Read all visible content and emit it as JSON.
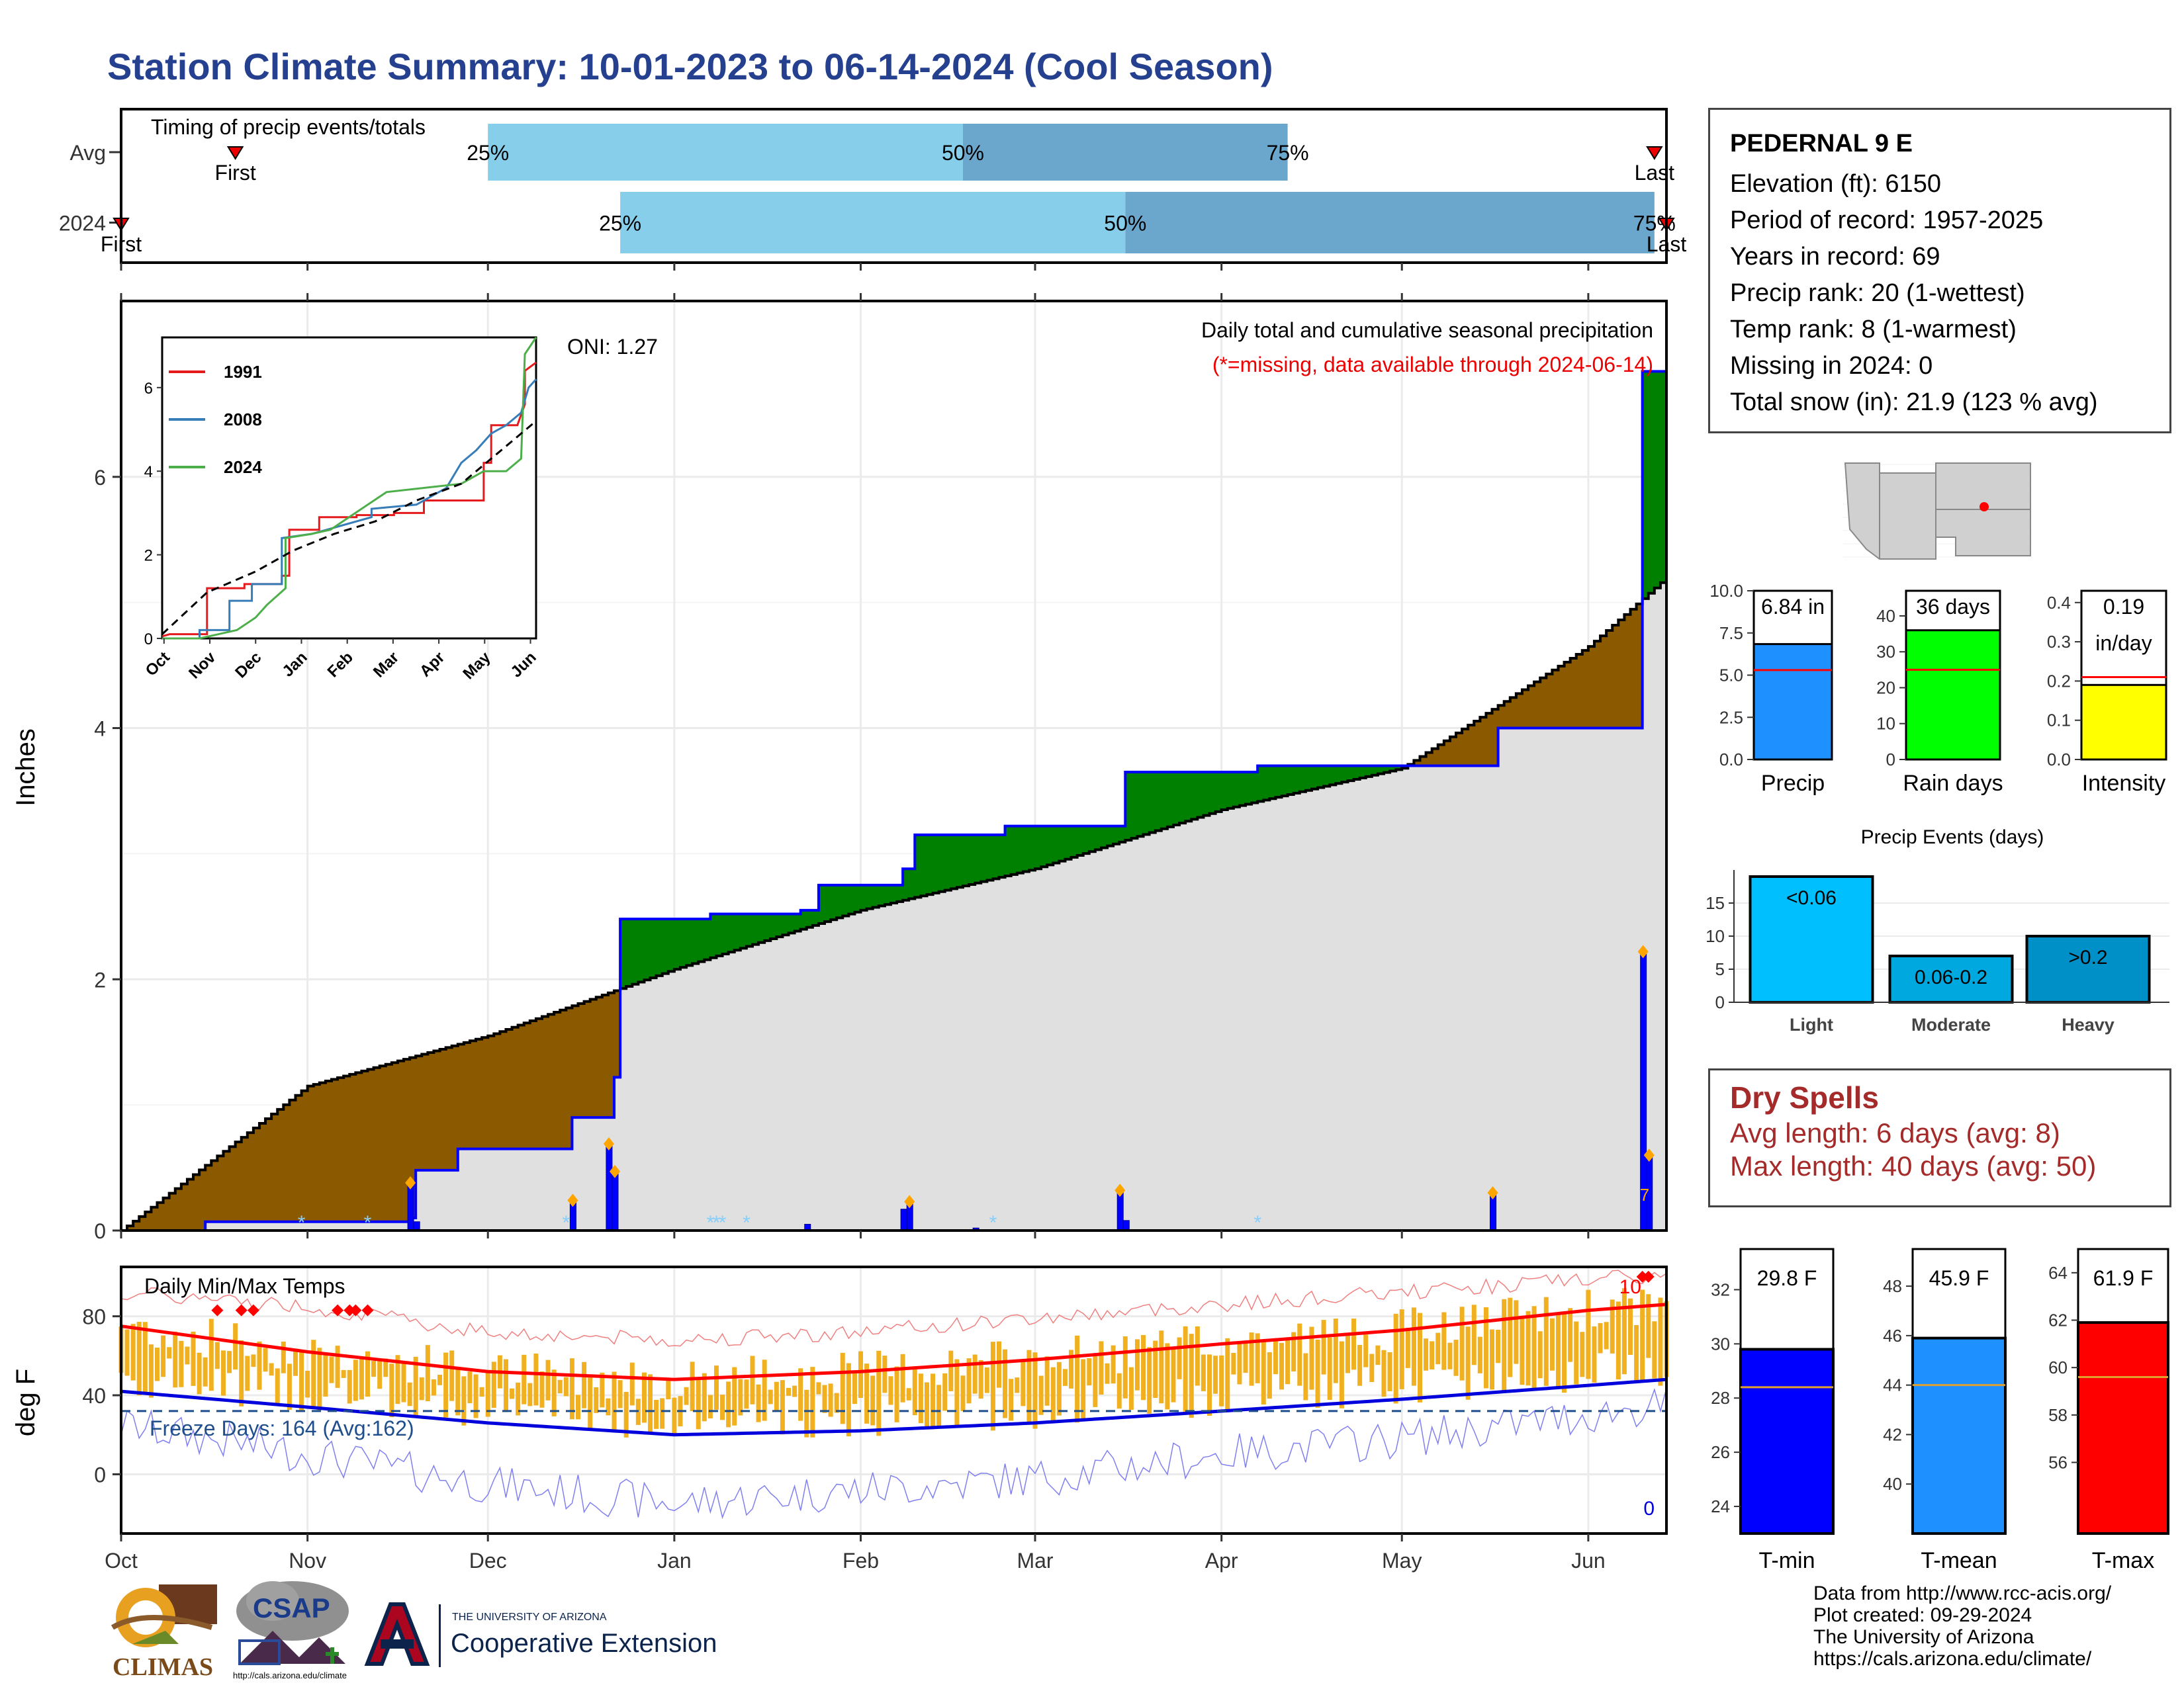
{
  "title": "Station Climate Summary: 10-01-2023 to 06-14-2024 (Cool Season)",
  "colors": {
    "title": "#24408e",
    "q1": "#87ceeb",
    "q2": "#6ba6cd",
    "brown": "#8b5a00",
    "green": "#008000",
    "gray_fill": "#e0e0e0",
    "blue_line": "#0000ff",
    "orange": "#ffa500",
    "red": "#ff0000",
    "temp_bar": "#f0b020"
  },
  "timing": {
    "title": "Timing of precip events/totals",
    "rows": [
      {
        "label": "Avg",
        "first_label": "First",
        "last_label": "Last",
        "first_date": "2023-10-20",
        "last_date": "2024-06-12",
        "p25": "2023-12-01",
        "p50": "2024-02-18",
        "p75": "2024-04-12",
        "q25_label": "25%",
        "q50_label": "50%",
        "q75_label": "75%"
      },
      {
        "label": "2024",
        "first_label": "First",
        "last_label": "Last",
        "first_date": "2023-10-01",
        "last_date": "2024-06-14",
        "p25": "2023-12-23",
        "p50": "2024-03-16",
        "p75": "2024-06-12",
        "q25_label": "25%",
        "q50_label": "50%",
        "q75_label": "75%"
      }
    ]
  },
  "precip_panel": {
    "ylabel": "Inches",
    "header": "Daily total and cumulative seasonal precipitation",
    "note": "(*=missing, data available through 2024-06-14)",
    "oni": "ONI: 1.27",
    "yticks": [
      "0",
      "2",
      "4",
      "6"
    ],
    "annotation": "7"
  },
  "inset": {
    "legend": [
      "1991",
      "2008",
      "2024"
    ],
    "xticks": [
      "Oct",
      "Nov",
      "Dec",
      "Jan",
      "Feb",
      "Mar",
      "Apr",
      "May",
      "Jun"
    ],
    "yticks": [
      "0",
      "2",
      "4",
      "6"
    ]
  },
  "temp_panel": {
    "ylabel": "deg F",
    "title": "Daily Min/Max Temps",
    "freeze": "Freeze Days: 164 (Avg:162)",
    "record_hi_count": "10",
    "record_lo_count": "0",
    "yticks": [
      "0",
      "40",
      "80"
    ]
  },
  "months": [
    "Oct",
    "Nov",
    "Dec",
    "Jan",
    "Feb",
    "Mar",
    "Apr",
    "May",
    "Jun"
  ],
  "station": {
    "name": "PEDERNAL 9 E",
    "lines": [
      "Elevation (ft): 6150",
      "Period of record: 1957-2025",
      "Years in record: 69",
      "Precip rank: 20 (1-wettest)",
      "Temp rank: 8 (1-warmest)",
      "Missing in 2024: 0",
      "Total snow (in): 21.9 (123 % avg)"
    ]
  },
  "mini_bars": [
    {
      "label": "Precip",
      "value_text": "6.84 in",
      "value": 6.84,
      "avg": 5.3,
      "ymax": 10,
      "yticks": [
        "0.0",
        "2.5",
        "5.0",
        "7.5",
        "10.0"
      ],
      "tickvals": [
        0,
        2.5,
        5,
        7.5,
        10
      ],
      "color": "#1e90ff"
    },
    {
      "label": "Rain days",
      "value_text": "36 days",
      "value": 36,
      "avg": 25,
      "ymax": 47,
      "yticks": [
        "0",
        "10",
        "20",
        "30",
        "40"
      ],
      "tickvals": [
        0,
        10,
        20,
        30,
        40
      ],
      "color": "#00ff00"
    },
    {
      "label": "Intensity",
      "value_text": "0.19",
      "value_text2": "in/day",
      "value": 0.19,
      "avg": 0.21,
      "ymax": 0.43,
      "yticks": [
        "0.0",
        "0.1",
        "0.2",
        "0.3",
        "0.4"
      ],
      "tickvals": [
        0,
        0.1,
        0.2,
        0.3,
        0.4
      ],
      "color": "#ffff00"
    }
  ],
  "events": {
    "title": "Precip Events (days)",
    "categories": [
      "Light",
      "Moderate",
      "Heavy"
    ],
    "bar_labels": [
      "<0.06",
      "0.06-0.2",
      ">0.2"
    ],
    "values": [
      19,
      7,
      10
    ],
    "colors": [
      "#00bfff",
      "#00a8e0",
      "#0090c8"
    ],
    "yticks": [
      "0",
      "5",
      "10",
      "15"
    ]
  },
  "dry_spells": {
    "title": "Dry Spells",
    "avg_line": "Avg length: 6 days (avg: 8)",
    "max_line": "Max length: 40 days (avg: 50)"
  },
  "temp_bars": [
    {
      "label": "T-min",
      "value_text": "29.8 F",
      "value": 29.8,
      "avg": 28.4,
      "ymin": 23,
      "ymax": 33.5,
      "yticks": [
        "24",
        "26",
        "28",
        "30",
        "32"
      ],
      "tickvals": [
        24,
        26,
        28,
        30,
        32
      ],
      "color": "#0000ff"
    },
    {
      "label": "T-mean",
      "value_text": "45.9 F",
      "value": 45.9,
      "avg": 44.0,
      "ymin": 38,
      "ymax": 49.5,
      "yticks": [
        "40",
        "42",
        "44",
        "46",
        "48"
      ],
      "tickvals": [
        40,
        42,
        44,
        46,
        48
      ],
      "color": "#1e90ff"
    },
    {
      "label": "T-max",
      "value_text": "61.9 F",
      "value": 61.9,
      "avg": 59.6,
      "ymin": 53,
      "ymax": 65,
      "yticks": [
        "56",
        "58",
        "60",
        "62",
        "64"
      ],
      "tickvals": [
        56,
        58,
        60,
        62,
        64
      ],
      "color": "#ff0000"
    }
  ],
  "logos": {
    "climas": "CLIMAS",
    "csap": "CSAP",
    "csap_url": "http://cals.arizona.edu/climate",
    "ua_small": "THE UNIVERSITY OF ARIZONA",
    "ua_big": "Cooperative Extension"
  },
  "credits": [
    "Data from http://www.rcc-acis.org/",
    "Plot created: 09-29-2024",
    "The University of Arizona",
    "https://cals.arizona.edu/climate/"
  ],
  "chart_data": [
    {
      "type": "area",
      "title": "Daily total and cumulative seasonal precipitation",
      "ylabel": "Inches",
      "ylim": [
        0,
        7.4
      ],
      "series": [
        {
          "name": "2024",
          "x": [
            "2023-10-01",
            "2023-10-15",
            "2023-11-01",
            "2023-11-18",
            "2023-11-19",
            "2023-11-26",
            "2023-12-15",
            "2023-12-22",
            "2023-12-23",
            "2024-01-07",
            "2024-01-20",
            "2024-01-22",
            "2024-01-25",
            "2024-02-08",
            "2024-02-10",
            "2024-02-25",
            "2024-03-16",
            "2024-04-07",
            "2024-05-16",
            "2024-05-17",
            "2024-06-08",
            "2024-06-10",
            "2024-06-14"
          ],
          "values": [
            0.0,
            0.07,
            0.07,
            0.1,
            0.48,
            0.65,
            0.9,
            1.22,
            2.48,
            2.52,
            2.52,
            2.55,
            2.75,
            2.88,
            3.15,
            3.22,
            3.65,
            3.7,
            3.7,
            4.0,
            4.0,
            6.84,
            6.84
          ]
        },
        {
          "name": "Average",
          "x": [
            "2023-10-01",
            "2023-11-01",
            "2023-12-01",
            "2024-01-01",
            "2024-02-01",
            "2024-03-01",
            "2024-04-01",
            "2024-05-01",
            "2024-06-01",
            "2024-06-14"
          ],
          "values": [
            0.0,
            1.15,
            1.55,
            2.08,
            2.55,
            2.88,
            3.35,
            3.68,
            4.65,
            5.2
          ]
        }
      ],
      "daily_bars": {
        "x": [
          "2023-11-18",
          "2023-11-19",
          "2023-12-15",
          "2023-12-21",
          "2023-12-22",
          "2024-01-23",
          "2024-02-08",
          "2024-02-09",
          "2024-02-20",
          "2024-03-15",
          "2024-03-16",
          "2024-05-16",
          "2024-06-10",
          "2024-06-11"
        ],
        "values": [
          0.38,
          0.07,
          0.24,
          0.69,
          0.47,
          0.05,
          0.17,
          0.23,
          0.02,
          0.32,
          0.08,
          0.3,
          2.22,
          0.6
        ]
      },
      "missing_dates": [
        "2023-10-31",
        "2023-11-11",
        "2023-12-14",
        "2024-01-07",
        "2024-01-08",
        "2024-01-09",
        "2024-01-13",
        "2024-02-23",
        "2024-04-07"
      ]
    },
    {
      "type": "line",
      "title": "Inset cumulative precipitation",
      "series": [
        {
          "name": "1991",
          "color": "#e41a1c"
        },
        {
          "name": "2008",
          "color": "#377eb8"
        },
        {
          "name": "2024",
          "color": "#4daf4a"
        }
      ],
      "ylim": [
        0,
        7.2
      ]
    },
    {
      "type": "line",
      "title": "Daily Min/Max Temps",
      "ylabel": "deg F",
      "ylim": [
        -30,
        105
      ],
      "x": [
        "2023-10-01",
        "2023-11-01",
        "2023-12-01",
        "2024-01-01",
        "2024-02-01",
        "2024-03-01",
        "2024-04-01",
        "2024-05-01",
        "2024-06-01",
        "2024-06-14"
      ],
      "series": [
        {
          "name": "Avg max",
          "values": [
            75,
            62,
            52,
            48,
            52,
            58,
            66,
            73,
            83,
            86
          ]
        },
        {
          "name": "Avg min",
          "values": [
            42,
            34,
            26,
            20,
            22,
            26,
            32,
            38,
            45,
            48
          ]
        },
        {
          "name": "Record high",
          "values": [
            92,
            85,
            72,
            68,
            72,
            79,
            86,
            92,
            99,
            100
          ]
        },
        {
          "name": "Record low",
          "values": [
            25,
            10,
            -5,
            -15,
            -8,
            -2,
            10,
            18,
            30,
            35
          ]
        }
      ],
      "freeze_threshold": 32
    },
    {
      "type": "bar",
      "title": "Precip Events (days)",
      "categories": [
        "Light",
        "Moderate",
        "Heavy"
      ],
      "values": [
        19,
        7,
        10
      ]
    }
  ]
}
